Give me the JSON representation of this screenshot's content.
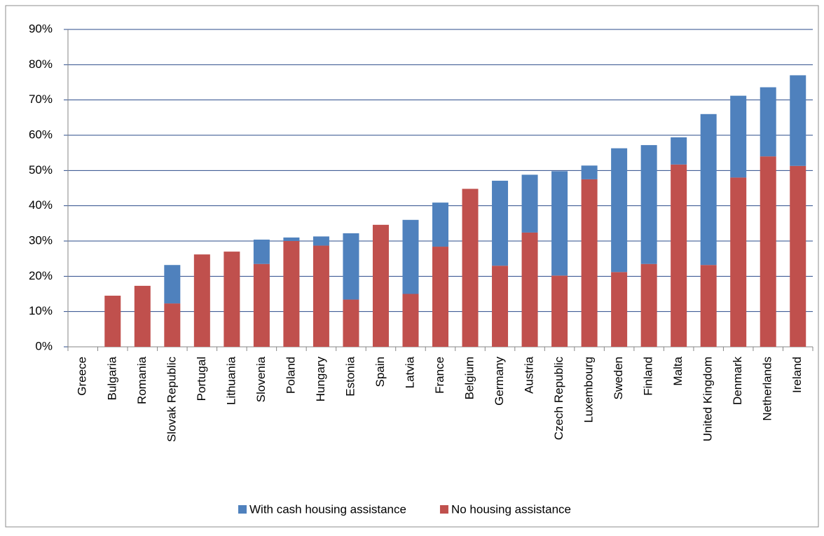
{
  "chart_data": {
    "type": "stacked_bar",
    "categories": [
      "Greece",
      "Bulgaria",
      "Romania",
      "Slovak Republic",
      "Portugal",
      "Lithuania",
      "Slovenia",
      "Poland",
      "Hungary",
      "Estonia",
      "Spain",
      "Latvia",
      "France",
      "Belgium",
      "Germany",
      "Austria",
      "Czech Republic",
      "Luxembourg",
      "Sweden",
      "Finland",
      "Malta",
      "United Kingdom",
      "Denmark",
      "Netherlands",
      "Ireland"
    ],
    "series": [
      {
        "name": "No housing assistance",
        "color": "#c0504d",
        "values": [
          0,
          14.5,
          17.3,
          12.3,
          26.2,
          27,
          23.5,
          30,
          28.7,
          13.4,
          34.6,
          15,
          28.4,
          44.8,
          23,
          32.4,
          20.2,
          47.5,
          21.2,
          23.5,
          51.7,
          23.2,
          48,
          54,
          51.3
        ]
      },
      {
        "name": "With cash housing assistance",
        "color": "#4f81bd",
        "values": [
          0,
          0,
          0,
          10.9,
          0,
          0,
          6.9,
          1,
          2.6,
          18.8,
          0,
          21,
          12.5,
          0,
          24.1,
          16.4,
          29.6,
          3.9,
          35.1,
          33.7,
          7.7,
          42.8,
          23.2,
          19.6,
          25.7
        ]
      }
    ],
    "ylim": [
      0,
      90
    ],
    "yticks": [
      {
        "value": 0,
        "label": "0%"
      },
      {
        "value": 10,
        "label": "10%"
      },
      {
        "value": 20,
        "label": "20%"
      },
      {
        "value": 30,
        "label": "30%"
      },
      {
        "value": 40,
        "label": "40%"
      },
      {
        "value": 50,
        "label": "50%"
      },
      {
        "value": 60,
        "label": "60%"
      },
      {
        "value": 70,
        "label": "70%"
      },
      {
        "value": 80,
        "label": "80%"
      },
      {
        "value": 90,
        "label": "90%"
      }
    ],
    "grid": true
  }
}
